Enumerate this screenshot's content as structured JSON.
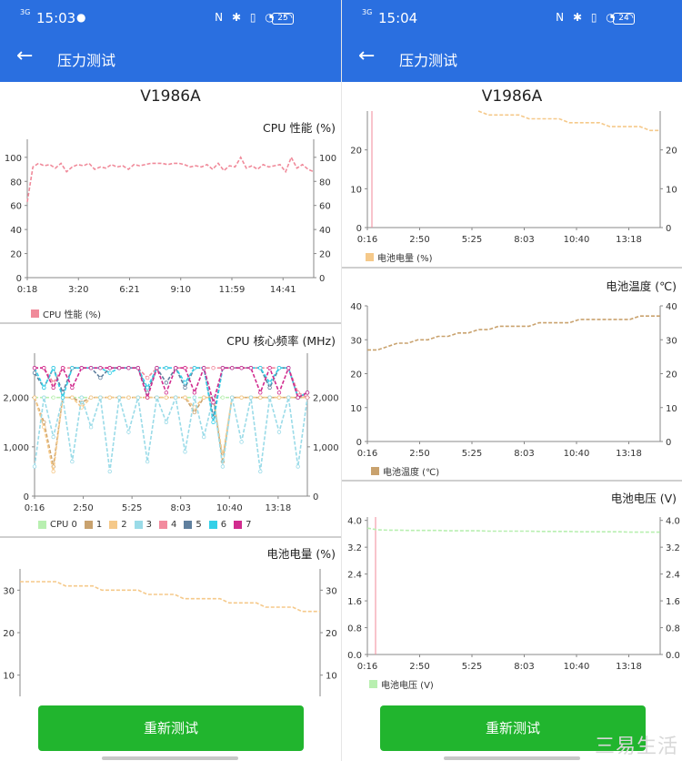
{
  "phones": [
    {
      "status": {
        "signal": "3G",
        "time": "15:03",
        "battery": "25"
      },
      "appbar": {
        "back_icon": "arrow-left-icon",
        "title": "压力测试"
      },
      "device": "V1986A",
      "button": "重新测试",
      "sections": [
        {
          "title": "CPU 性能 (%)"
        },
        {
          "title": "CPU 核心频率 (MHz)"
        },
        {
          "title": "电池电量 (%)"
        }
      ]
    },
    {
      "status": {
        "signal": "3G",
        "time": "15:04",
        "battery": "24"
      },
      "appbar": {
        "back_icon": "arrow-left-icon",
        "title": "压力测试"
      },
      "device": "V1986A",
      "button": "重新测试",
      "sections": [
        {
          "title": ""
        },
        {
          "title": "电池温度 (℃)"
        },
        {
          "title": "电池电压 (V)"
        }
      ]
    }
  ],
  "watermark": "三易生活",
  "chart_data": [
    {
      "id": "cpu-perf",
      "type": "line",
      "title": "CPU 性能 (%)",
      "xticks": [
        "0:18",
        "3:20",
        "6:21",
        "9:10",
        "11:59",
        "14:41"
      ],
      "yticks": [
        "0",
        "20",
        "40",
        "60",
        "80",
        "100"
      ],
      "ylim": [
        0,
        115
      ],
      "series": [
        {
          "name": "CPU 性能 (%)",
          "color": "#f08a9a",
          "values": [
            63,
            92,
            95,
            93,
            94,
            91,
            95,
            88,
            92,
            94,
            93,
            95,
            90,
            92,
            91,
            94,
            92,
            93,
            90,
            94,
            93,
            94,
            95,
            95,
            95,
            94,
            95,
            95,
            94,
            92,
            93,
            92,
            94,
            90,
            95,
            89,
            93,
            92,
            100,
            91,
            93,
            90,
            94,
            92,
            93,
            94,
            88,
            100,
            91,
            94,
            90,
            88
          ]
        }
      ]
    },
    {
      "id": "cpu-freq",
      "type": "line",
      "title": "CPU 核心频率 (MHz)",
      "xticks": [
        "0:16",
        "2:50",
        "5:25",
        "8:03",
        "10:40",
        "13:18"
      ],
      "yticks": [
        "0",
        "1,000",
        "2,000"
      ],
      "ylim": [
        0,
        2900
      ],
      "series": [
        {
          "name": "CPU 0",
          "color": "#b8efb0",
          "values": [
            2000,
            2000,
            2000,
            2000,
            2000,
            2000,
            2000,
            2000,
            2000,
            2000,
            2000,
            2000,
            2000,
            2000,
            2000,
            2000,
            2000,
            2000,
            2000,
            2000,
            2000,
            2000,
            2000,
            2000,
            2000,
            2000,
            2000,
            2000,
            2000,
            2000
          ]
        },
        {
          "name": "1",
          "color": "#c9a26e",
          "values": [
            2000,
            1500,
            600,
            2000,
            2000,
            1900,
            2000,
            2000,
            2000,
            2000,
            2000,
            2000,
            2000,
            2000,
            2000,
            2000,
            2000,
            1700,
            2000,
            2000,
            700,
            2000,
            2000,
            2000,
            2000,
            2000,
            2000,
            2000,
            2000,
            2000
          ]
        },
        {
          "name": "2",
          "color": "#f5c98a",
          "values": [
            2000,
            1400,
            500,
            2000,
            2000,
            1800,
            2000,
            2000,
            2000,
            2000,
            2000,
            2000,
            2000,
            2000,
            2000,
            2000,
            2000,
            1800,
            2000,
            2000,
            800,
            2000,
            2000,
            2000,
            2000,
            2000,
            2000,
            2000,
            2000,
            2000
          ]
        },
        {
          "name": "3",
          "color": "#9adbe8",
          "values": [
            600,
            2000,
            1200,
            2000,
            700,
            2000,
            1400,
            2000,
            500,
            2000,
            1300,
            2000,
            700,
            2000,
            1500,
            2000,
            900,
            2000,
            1200,
            2000,
            600,
            2000,
            1100,
            2000,
            500,
            2000,
            1300,
            2000,
            600,
            2000
          ]
        },
        {
          "name": "4",
          "color": "#f28b9e",
          "values": [
            2600,
            2600,
            2300,
            2600,
            2600,
            2600,
            2600,
            2600,
            2600,
            2600,
            2600,
            2600,
            2400,
            2600,
            2600,
            2600,
            2600,
            2600,
            2600,
            2600,
            2600,
            2600,
            2600,
            2600,
            2600,
            2600,
            2600,
            2600,
            2100,
            2000
          ]
        },
        {
          "name": "5",
          "color": "#5f7f9e",
          "values": [
            2500,
            2200,
            2600,
            2100,
            2600,
            2600,
            2600,
            2400,
            2600,
            2600,
            2600,
            2600,
            2100,
            2600,
            2300,
            2600,
            2200,
            2600,
            2600,
            1600,
            2600,
            2600,
            2600,
            2600,
            2600,
            2200,
            2600,
            2600,
            2000,
            2100
          ]
        },
        {
          "name": "6",
          "color": "#33d0e8",
          "values": [
            2600,
            2200,
            2600,
            2000,
            2600,
            2600,
            2600,
            2600,
            2500,
            2600,
            2600,
            2600,
            2200,
            2600,
            2600,
            2600,
            2300,
            2600,
            2600,
            1500,
            2600,
            2600,
            2600,
            2600,
            2600,
            2300,
            2600,
            2600,
            2000,
            2100
          ]
        },
        {
          "name": "7",
          "color": "#d12b8e",
          "values": [
            2600,
            2600,
            2200,
            2600,
            2200,
            2600,
            2600,
            2600,
            2600,
            2600,
            2600,
            2600,
            2000,
            2600,
            2100,
            2600,
            2600,
            2100,
            2600,
            1900,
            2600,
            2600,
            2600,
            2600,
            2100,
            2600,
            2100,
            2600,
            2000,
            2100
          ]
        }
      ]
    },
    {
      "id": "battery-left",
      "type": "line",
      "title": "电池电量 (%)",
      "xticks": [],
      "yticks": [
        "10",
        "20",
        "30"
      ],
      "ylim": [
        5,
        35
      ],
      "series": [
        {
          "name": "电池电量 (%)",
          "color": "#f5c98a",
          "values": [
            32,
            32,
            32,
            32,
            32,
            31,
            31,
            31,
            31,
            30,
            30,
            30,
            30,
            30,
            29,
            29,
            29,
            29,
            28,
            28,
            28,
            28,
            28,
            27,
            27,
            27,
            27,
            26,
            26,
            26,
            26,
            25,
            25,
            25
          ]
        }
      ]
    },
    {
      "id": "battery-right",
      "type": "line",
      "title": "电池电量 (%)",
      "xticks": [
        "0:16",
        "2:50",
        "5:25",
        "8:03",
        "10:40",
        "13:18"
      ],
      "yticks": [
        "0",
        "10",
        "20"
      ],
      "ylim": [
        0,
        30
      ],
      "legend": "电池电量 (%)",
      "series": [
        {
          "name": "电池电量 (%)",
          "color": "#f5c98a",
          "values": [
            null,
            null,
            null,
            null,
            null,
            null,
            null,
            null,
            null,
            null,
            null,
            30,
            29,
            29,
            29,
            29,
            28,
            28,
            28,
            28,
            27,
            27,
            27,
            27,
            26,
            26,
            26,
            26,
            25,
            25
          ]
        }
      ]
    },
    {
      "id": "battery-temp",
      "type": "line",
      "title": "电池温度 (℃)",
      "xticks": [
        "0:16",
        "2:50",
        "5:25",
        "8:03",
        "10:40",
        "13:18"
      ],
      "yticks": [
        "0",
        "10",
        "20",
        "30",
        "40"
      ],
      "ylim": [
        0,
        40
      ],
      "series": [
        {
          "name": "电池温度 (℃)",
          "color": "#c9a26e",
          "values": [
            27,
            27,
            28,
            29,
            29,
            30,
            30,
            31,
            31,
            32,
            32,
            33,
            33,
            34,
            34,
            34,
            34,
            35,
            35,
            35,
            35,
            36,
            36,
            36,
            36,
            36,
            36,
            37,
            37,
            37
          ]
        }
      ]
    },
    {
      "id": "battery-volt",
      "type": "line",
      "title": "电池电压 (V)",
      "xticks": [
        "0:16",
        "2:50",
        "5:25",
        "8:03",
        "10:40",
        "13:18"
      ],
      "yticks": [
        "0.0",
        "0.8",
        "1.6",
        "2.4",
        "3.2",
        "4.0"
      ],
      "ylim": [
        0,
        4.1
      ],
      "series": [
        {
          "name": "电池电压 (V)",
          "color": "#b8efb0",
          "values": [
            3.77,
            3.72,
            3.71,
            3.71,
            3.7,
            3.7,
            3.7,
            3.7,
            3.69,
            3.69,
            3.69,
            3.69,
            3.68,
            3.68,
            3.68,
            3.68,
            3.68,
            3.67,
            3.67,
            3.67,
            3.67,
            3.66,
            3.66,
            3.66,
            3.66,
            3.66,
            3.65,
            3.65,
            3.65,
            3.65
          ]
        }
      ]
    }
  ]
}
